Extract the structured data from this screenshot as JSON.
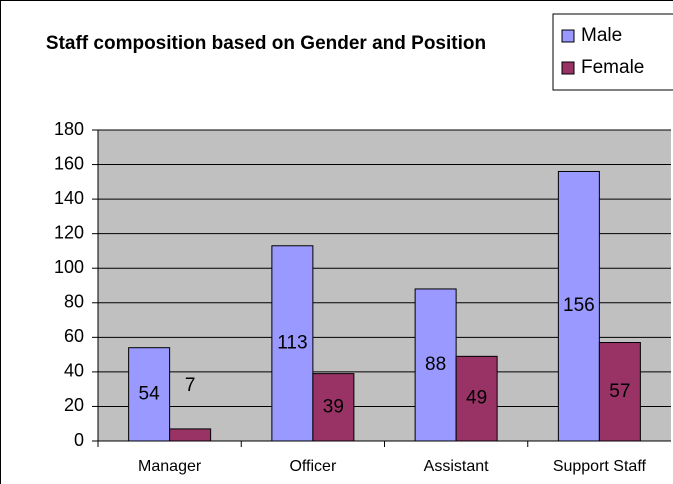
{
  "chart_data": {
    "type": "bar",
    "title": "Staff composition based on Gender and Position",
    "categories": [
      "Manager",
      "Officer",
      "Assistant",
      "Support Staff"
    ],
    "series": [
      {
        "name": "Male",
        "color": "#9999ff",
        "values": [
          54,
          113,
          88,
          156
        ]
      },
      {
        "name": "Female",
        "color": "#993366",
        "values": [
          7,
          39,
          49,
          57
        ]
      }
    ],
    "ylim": [
      0,
      180
    ],
    "yticks": [
      0,
      20,
      40,
      60,
      80,
      100,
      120,
      140,
      160,
      180
    ],
    "grid": true,
    "legend": "top-right",
    "plot_background": "#c0c0c0"
  }
}
